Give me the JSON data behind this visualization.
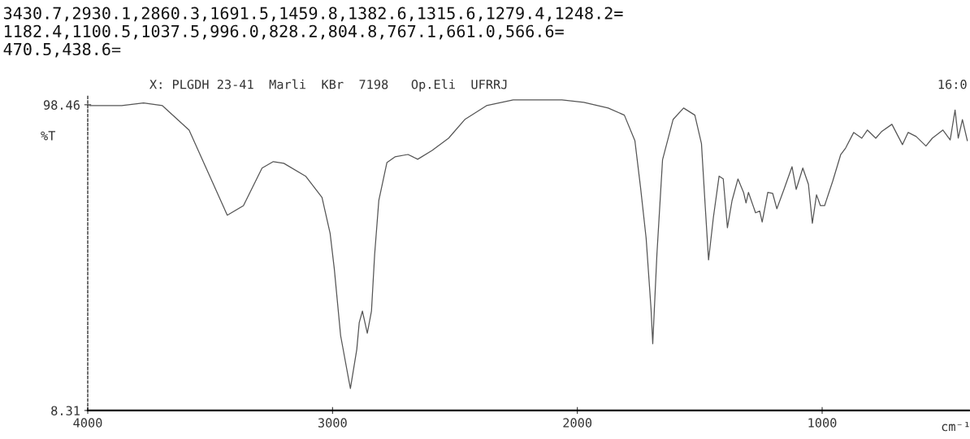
{
  "chart_data": {
    "type": "line",
    "title": "X: PLGDH 23-41  Marli  KBr  7198   Op.Eli  UFRRJ",
    "ylabel": "%T",
    "xlabel": "cm⁻¹",
    "annotations": [
      "3430.7,2930.1,2860.3,1691.5,1459.8,1382.6,1315.6,1279.4,1248.2=",
      "1182.4,1100.5,1037.5,996.0,828.2,804.8,767.1,661.0,566.6=",
      "470.5,438.6=",
      "16:0"
    ],
    "xlim": [
      4000,
      400
    ],
    "xticks": [
      4000,
      3000,
      2000,
      1000
    ],
    "ylim": [
      8.31,
      101
    ],
    "yticks": [
      98.46,
      8.31
    ],
    "grid": false,
    "legend": false,
    "marker": "none",
    "line_style": "solid",
    "series": [
      {
        "color": "#555555",
        "x": [
          3993,
          3861,
          3772,
          3695,
          3586,
          3507,
          3430,
          3364,
          3288,
          3242,
          3199,
          3110,
          3043,
          3010,
          2993,
          2967,
          2934,
          2927,
          2901,
          2891,
          2878,
          2858,
          2841,
          2828,
          2811,
          2778,
          2745,
          2692,
          2652,
          2593,
          2526,
          2460,
          2371,
          2262,
          2063,
          1974,
          1874,
          1808,
          1765,
          1742,
          1719,
          1699,
          1692,
          1675,
          1652,
          1609,
          1566,
          1520,
          1493,
          1477,
          1464,
          1444,
          1421,
          1404,
          1387,
          1368,
          1344,
          1321,
          1311,
          1301,
          1272,
          1255,
          1245,
          1222,
          1202,
          1185,
          1156,
          1123,
          1106,
          1079,
          1056,
          1040,
          1023,
          1007,
          990,
          957,
          924,
          904,
          871,
          838,
          815,
          781,
          758,
          715,
          672,
          649,
          616,
          576,
          550,
          507,
          477,
          457,
          444,
          427,
          407
        ],
        "values": [
          98.2,
          98.2,
          99,
          98.2,
          91,
          78.3,
          65.9,
          68.7,
          79.8,
          81.7,
          81.2,
          77.4,
          71.1,
          60.6,
          50.2,
          30.4,
          17.4,
          14.8,
          26.3,
          34.2,
          37.6,
          31.1,
          37.6,
          54.3,
          70.2,
          81.4,
          83.1,
          83.8,
          82.4,
          85.0,
          88.6,
          94.1,
          98.2,
          99.9,
          99.9,
          99.2,
          97.5,
          95.4,
          87.9,
          74.2,
          59.1,
          38.3,
          28.0,
          54.3,
          82.2,
          94.1,
          97.5,
          95.4,
          87,
          67.8,
          52.7,
          65.4,
          77.4,
          76.6,
          62.2,
          70.2,
          76.6,
          72.6,
          69.5,
          72.6,
          66.6,
          67.1,
          63.9,
          72.6,
          72.3,
          67.8,
          73.5,
          80.2,
          73.5,
          79.8,
          75,
          63.5,
          71.9,
          68.7,
          68.7,
          75.9,
          83.8,
          85.7,
          90.3,
          88.6,
          91,
          88.6,
          90.5,
          92.7,
          86.7,
          90.3,
          89.1,
          86.3,
          88.6,
          91,
          88.1,
          96.9,
          88.6,
          94.1,
          87.9
        ]
      }
    ]
  }
}
